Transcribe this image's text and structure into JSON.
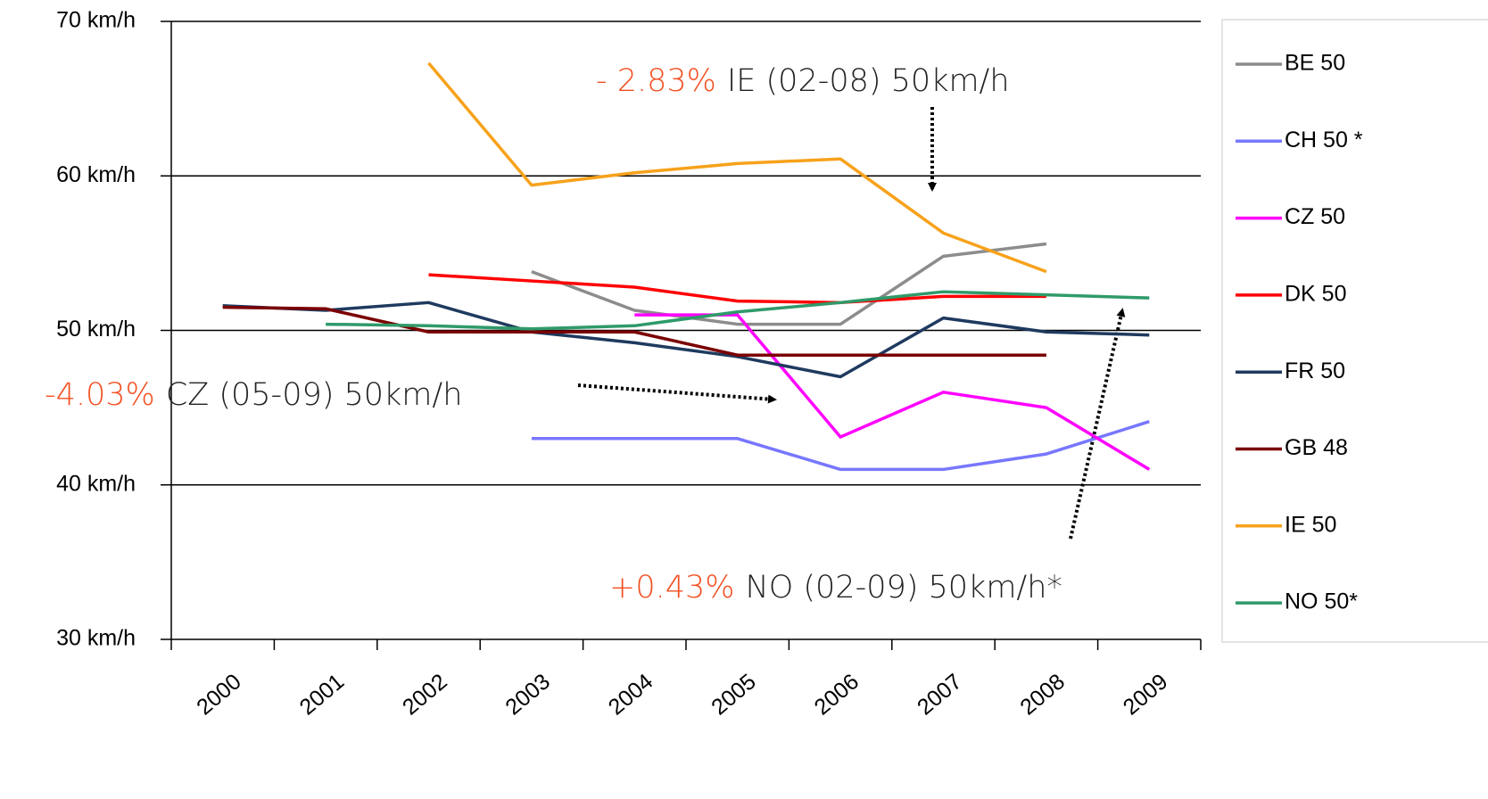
{
  "chart_data": {
    "type": "line",
    "categories": [
      "2000",
      "2001",
      "2002",
      "2003",
      "2004",
      "2005",
      "2006",
      "2007",
      "2008",
      "2009"
    ],
    "ylim": [
      30,
      70
    ],
    "yticks": [
      {
        "value": 30,
        "label": "30 km/h"
      },
      {
        "value": 40,
        "label": "40 km/h"
      },
      {
        "value": 50,
        "label": "50 km/h"
      },
      {
        "value": 60,
        "label": "60 km/h"
      },
      {
        "value": 70,
        "label": "70 km/h"
      }
    ],
    "grid": true,
    "legend": "right",
    "series": [
      {
        "name": "BE 50",
        "color": "#8c8c8c",
        "values": [
          null,
          null,
          null,
          53.8,
          51.3,
          50.4,
          50.4,
          54.8,
          55.6,
          null
        ]
      },
      {
        "name": "CH 50 *",
        "color": "#7777ff",
        "values": [
          null,
          null,
          null,
          43.0,
          43.0,
          43.0,
          41.0,
          41.0,
          42.0,
          44.1
        ]
      },
      {
        "name": "CZ 50",
        "color": "#ff00ff",
        "values": [
          null,
          null,
          null,
          null,
          51.0,
          51.0,
          43.1,
          46.0,
          45.0,
          41.0
        ]
      },
      {
        "name": "DK 50",
        "color": "#ff0000",
        "values": [
          null,
          null,
          53.6,
          53.2,
          52.8,
          51.9,
          51.8,
          52.2,
          52.2,
          null
        ]
      },
      {
        "name": "FR 50",
        "color": "#1f3a5f",
        "values": [
          51.6,
          51.3,
          51.8,
          49.9,
          49.2,
          48.3,
          47.0,
          50.8,
          49.9,
          49.7
        ]
      },
      {
        "name": "GB 48",
        "color": "#7b0000",
        "values": [
          51.5,
          51.4,
          49.9,
          49.9,
          49.9,
          48.4,
          48.4,
          48.4,
          48.4,
          null
        ]
      },
      {
        "name": "IE 50",
        "color": "#f7a21b",
        "values": [
          null,
          null,
          67.3,
          59.4,
          60.2,
          60.8,
          61.1,
          56.3,
          53.8,
          null
        ]
      },
      {
        "name": "NO 50*",
        "color": "#2f9a6a",
        "values": [
          null,
          50.4,
          50.3,
          50.1,
          50.3,
          51.2,
          51.8,
          52.5,
          52.3,
          52.1
        ]
      }
    ],
    "annotations": [
      {
        "change": "- 2.83%",
        "text": "IE (02-08) 50km/h"
      },
      {
        "change": "-4.03%",
        "text": "CZ (05-09) 50km/h"
      },
      {
        "change": "+0.43%",
        "text": "NO (02-09) 50km/h*"
      }
    ]
  }
}
